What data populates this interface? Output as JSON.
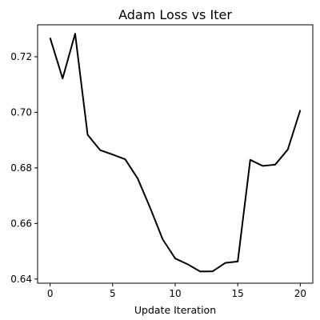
{
  "chart_data": {
    "type": "line",
    "title": "Adam Loss vs Iter",
    "xlabel": "Update Iteration",
    "ylabel": "",
    "xlim": [
      -1,
      21
    ],
    "ylim": [
      0.6385,
      0.7315
    ],
    "xticks": [
      0,
      5,
      10,
      15,
      20
    ],
    "yticks": [
      0.64,
      0.66,
      0.68,
      0.7,
      0.72
    ],
    "ytick_labels": [
      "0.64",
      "0.66",
      "0.68",
      "0.70",
      "0.72"
    ],
    "grid": false,
    "series": [
      {
        "color": "#000000",
        "x": [
          0,
          1,
          2,
          3,
          4,
          5,
          6,
          7,
          8,
          9,
          10,
          11,
          12,
          13,
          14,
          15,
          16,
          17,
          18,
          19,
          20
        ],
        "y": [
          0.7268,
          0.7122,
          0.7283,
          0.6919,
          0.6864,
          0.6848,
          0.6831,
          0.6762,
          0.6656,
          0.6543,
          0.6474,
          0.6453,
          0.6427,
          0.6428,
          0.6458,
          0.6463,
          0.6829,
          0.6807,
          0.6812,
          0.6866,
          0.7008
        ]
      }
    ]
  }
}
